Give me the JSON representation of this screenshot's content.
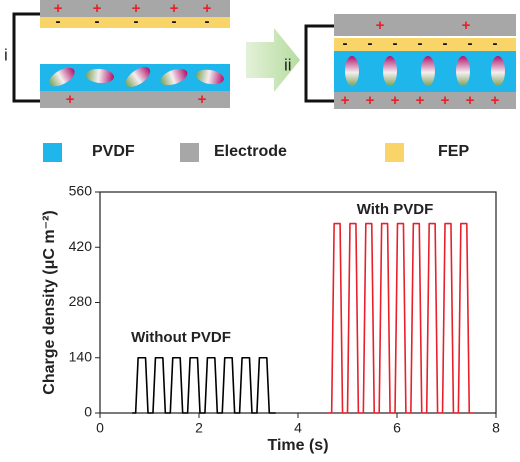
{
  "panels": [
    "i",
    "ii"
  ],
  "plus": "+",
  "minus": "-",
  "legend": [
    {
      "label": "PVDF",
      "color": "#1fb6ec"
    },
    {
      "label": "Electrode",
      "color": "#a7a7a7"
    },
    {
      "label": "FEP",
      "color": "#f9d468"
    }
  ],
  "chart_data": {
    "type": "line",
    "xlabel": "Time (s)",
    "ylabel": "Charge density (μC m⁻²)",
    "xlim": [
      0,
      8
    ],
    "xticks": [
      0,
      2,
      4,
      6,
      8
    ],
    "ylim": [
      0,
      560
    ],
    "yticks": [
      0,
      140,
      280,
      420,
      560
    ],
    "series": [
      {
        "name": "Without PVDF",
        "color": "#000000",
        "x": [
          0.65,
          0.72,
          0.77,
          0.92,
          0.97,
          1.07,
          1.12,
          1.27,
          1.32,
          1.42,
          1.47,
          1.62,
          1.67,
          1.77,
          1.82,
          1.97,
          2.02,
          2.12,
          2.17,
          2.32,
          2.37,
          2.47,
          2.52,
          2.67,
          2.72,
          2.82,
          2.87,
          3.02,
          3.07,
          3.17,
          3.22,
          3.37,
          3.42,
          3.55
        ],
        "values": [
          0,
          0,
          140,
          140,
          0,
          0,
          140,
          140,
          0,
          0,
          140,
          140,
          0,
          0,
          140,
          140,
          0,
          0,
          140,
          140,
          0,
          0,
          140,
          140,
          0,
          0,
          140,
          140,
          0,
          0,
          140,
          140,
          0,
          0
        ]
      },
      {
        "name": "With PVDF",
        "color": "#e8202a",
        "x": [
          4.6,
          4.68,
          4.73,
          4.85,
          4.9,
          5.0,
          5.05,
          5.17,
          5.22,
          5.32,
          5.37,
          5.49,
          5.54,
          5.64,
          5.69,
          5.81,
          5.86,
          5.96,
          6.01,
          6.13,
          6.18,
          6.28,
          6.33,
          6.45,
          6.5,
          6.6,
          6.65,
          6.77,
          6.82,
          6.92,
          6.97,
          7.09,
          7.14,
          7.24,
          7.29,
          7.41,
          7.46,
          7.55
        ],
        "values": [
          0,
          0,
          480,
          480,
          0,
          0,
          480,
          480,
          0,
          0,
          480,
          480,
          0,
          0,
          480,
          480,
          0,
          0,
          480,
          480,
          0,
          0,
          480,
          480,
          0,
          0,
          480,
          480,
          0,
          0,
          480,
          480,
          0,
          0,
          480,
          480,
          0,
          0
        ]
      }
    ]
  }
}
